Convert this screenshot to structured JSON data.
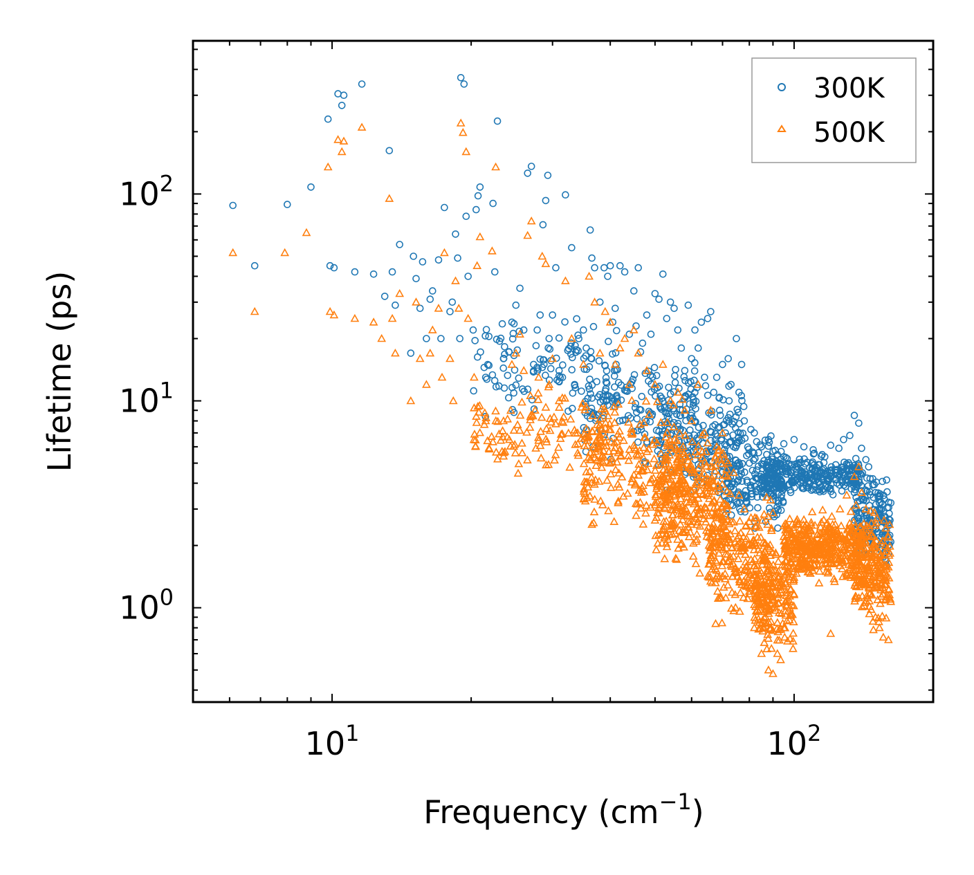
{
  "chart_data": {
    "type": "scatter",
    "title": "",
    "xlabel": "Frequency (cm",
    "xlabel_sup": "−1",
    "xlabel_close": ")",
    "ylabel": "Lifetime (ps)",
    "xscale": "log",
    "yscale": "log",
    "xlim": [
      5,
      200
    ],
    "ylim": [
      0.35,
      550
    ],
    "x_major_ticks": [
      {
        "value": 10,
        "base": "10",
        "exp": "1"
      },
      {
        "value": 100,
        "base": "10",
        "exp": "2"
      }
    ],
    "y_major_ticks": [
      {
        "value": 1,
        "base": "10",
        "exp": "0"
      },
      {
        "value": 10,
        "base": "10",
        "exp": "1"
      },
      {
        "value": 100,
        "base": "10",
        "exp": "2"
      }
    ],
    "legend_position": "top-right",
    "series": [
      {
        "name": "300K",
        "marker": "circle",
        "color": "#1f77b4",
        "points": [
          [
            6.1,
            88
          ],
          [
            6.8,
            45
          ],
          [
            8.0,
            89
          ],
          [
            9.0,
            108
          ],
          [
            9.8,
            230
          ],
          [
            9.9,
            45
          ],
          [
            10.1,
            44
          ],
          [
            10.3,
            305
          ],
          [
            10.5,
            268
          ],
          [
            10.6,
            300
          ],
          [
            11.2,
            42
          ],
          [
            11.6,
            340
          ],
          [
            12.3,
            41
          ],
          [
            13.0,
            32
          ],
          [
            13.3,
            162
          ],
          [
            13.5,
            42
          ],
          [
            13.7,
            29
          ],
          [
            14.0,
            57
          ],
          [
            14.8,
            17
          ],
          [
            15.0,
            50
          ],
          [
            15.2,
            39
          ],
          [
            15.5,
            28
          ],
          [
            15.7,
            47
          ],
          [
            16.0,
            20
          ],
          [
            16.3,
            31
          ],
          [
            16.5,
            34
          ],
          [
            17.0,
            48
          ],
          [
            17.2,
            20
          ],
          [
            17.5,
            86
          ],
          [
            18.0,
            27
          ],
          [
            18.2,
            30
          ],
          [
            18.5,
            64
          ],
          [
            18.7,
            49
          ],
          [
            18.9,
            20
          ],
          [
            19.0,
            365
          ],
          [
            19.3,
            340
          ],
          [
            19.5,
            78
          ],
          [
            19.7,
            40
          ],
          [
            20.2,
            22
          ],
          [
            20.5,
            84
          ],
          [
            20.7,
            98
          ],
          [
            20.9,
            108
          ],
          [
            21.5,
            13
          ],
          [
            22.3,
            90
          ],
          [
            22.5,
            42
          ],
          [
            22.8,
            225
          ],
          [
            23.5,
            16
          ],
          [
            24.5,
            24
          ],
          [
            25.0,
            29
          ],
          [
            25.5,
            35
          ],
          [
            26.0,
            22
          ],
          [
            26.5,
            126
          ],
          [
            27.0,
            136
          ],
          [
            27.3,
            15
          ],
          [
            27.8,
            22
          ],
          [
            28.2,
            26
          ],
          [
            28.6,
            71
          ],
          [
            29.0,
            93
          ],
          [
            29.3,
            123
          ],
          [
            29.5,
            20
          ],
          [
            30.0,
            26
          ],
          [
            30.5,
            44
          ],
          [
            31.0,
            14
          ],
          [
            32.0,
            99
          ],
          [
            33.0,
            55
          ],
          [
            33.5,
            12
          ],
          [
            34.2,
            20
          ],
          [
            35.0,
            22
          ],
          [
            35.5,
            18
          ],
          [
            36.2,
            67
          ],
          [
            36.5,
            49
          ],
          [
            37.0,
            44
          ],
          [
            38.0,
            30
          ],
          [
            38.8,
            44
          ],
          [
            39.5,
            40
          ],
          [
            40.0,
            45
          ],
          [
            40.5,
            24
          ],
          [
            41.0,
            28
          ],
          [
            42.0,
            45
          ],
          [
            43.0,
            42
          ],
          [
            44.0,
            21
          ],
          [
            45.0,
            34
          ],
          [
            45.5,
            23
          ],
          [
            46.0,
            44
          ],
          [
            47.0,
            19
          ],
          [
            48.0,
            26
          ],
          [
            49.0,
            21
          ],
          [
            50.0,
            33
          ],
          [
            51.0,
            31
          ],
          [
            52.0,
            41
          ],
          [
            53.0,
            25
          ],
          [
            54.0,
            30
          ],
          [
            55.0,
            28
          ],
          [
            56.0,
            22
          ],
          [
            57.0,
            18
          ],
          [
            58.0,
            14
          ],
          [
            59.0,
            29
          ],
          [
            60.0,
            16
          ],
          [
            61.0,
            22
          ],
          [
            62.0,
            18
          ],
          [
            63.0,
            24
          ],
          [
            64.0,
            13
          ],
          [
            65.0,
            25
          ],
          [
            66.0,
            27
          ],
          [
            67.0,
            11
          ],
          [
            68.0,
            13
          ],
          [
            69.0,
            9
          ],
          [
            70.0,
            15
          ],
          [
            71.0,
            7
          ],
          [
            72.0,
            16
          ],
          [
            73.0,
            12
          ],
          [
            74.0,
            6
          ],
          [
            75.0,
            20
          ],
          [
            76.0,
            11
          ],
          [
            77.0,
            15
          ],
          [
            78.0,
            8
          ],
          [
            80.0,
            5
          ],
          [
            82.0,
            7
          ],
          [
            85.0,
            6
          ],
          [
            88.0,
            6.5
          ],
          [
            92.0,
            5.5
          ],
          [
            95.0,
            6.2
          ],
          [
            100.0,
            6.5
          ],
          [
            105.0,
            6.0
          ],
          [
            110.0,
            5.8
          ],
          [
            115.0,
            5.5
          ],
          [
            120.0,
            6.1
          ],
          [
            125.0,
            5.9
          ],
          [
            128.0,
            6.5
          ],
          [
            132.0,
            6.8
          ],
          [
            135.0,
            8.5
          ],
          [
            138.0,
            7.8
          ],
          [
            140.0,
            5.9
          ],
          [
            143.0,
            5.2
          ],
          [
            145.0,
            4.8
          ],
          [
            148.0,
            4.2
          ],
          [
            150.0,
            3.6
          ],
          [
            153.0,
            3.0
          ],
          [
            156.0,
            2.6
          ],
          [
            160.0,
            2.2
          ]
        ],
        "bands": [
          {
            "x_start": 20,
            "x_end": 42,
            "y_low": 7,
            "y_high": 30,
            "count": 120
          },
          {
            "x_start": 35,
            "x_end": 62,
            "y_low": 4.5,
            "y_high": 20,
            "count": 170
          },
          {
            "x_start": 50,
            "x_end": 78,
            "y_low": 3,
            "y_high": 14,
            "count": 190
          },
          {
            "x_start": 70,
            "x_end": 95,
            "y_low": 2,
            "y_high": 8,
            "count": 190
          },
          {
            "x_start": 85,
            "x_end": 140,
            "y_low": 3.2,
            "y_high": 5.8,
            "count": 320
          },
          {
            "x_start": 135,
            "x_end": 162,
            "y_low": 1.3,
            "y_high": 5.5,
            "count": 170
          }
        ]
      },
      {
        "name": "500K",
        "marker": "triangle",
        "color": "#ff7f0e",
        "points": [
          [
            6.1,
            52
          ],
          [
            6.8,
            27
          ],
          [
            7.9,
            52
          ],
          [
            8.8,
            65
          ],
          [
            9.8,
            135
          ],
          [
            9.9,
            27
          ],
          [
            10.1,
            26
          ],
          [
            10.3,
            183
          ],
          [
            10.5,
            160
          ],
          [
            10.6,
            180
          ],
          [
            11.2,
            25
          ],
          [
            11.6,
            210
          ],
          [
            12.3,
            24
          ],
          [
            12.8,
            20
          ],
          [
            13.3,
            95
          ],
          [
            13.5,
            25
          ],
          [
            13.7,
            17
          ],
          [
            14.0,
            33
          ],
          [
            14.8,
            10
          ],
          [
            15.2,
            30
          ],
          [
            15.5,
            16
          ],
          [
            16.0,
            12
          ],
          [
            16.3,
            17
          ],
          [
            16.5,
            22
          ],
          [
            17.0,
            28
          ],
          [
            17.3,
            13
          ],
          [
            17.5,
            52
          ],
          [
            18.0,
            16
          ],
          [
            18.3,
            10
          ],
          [
            18.5,
            38
          ],
          [
            18.8,
            28
          ],
          [
            19.0,
            220
          ],
          [
            19.2,
            198
          ],
          [
            19.5,
            160
          ],
          [
            19.7,
            25
          ],
          [
            20.3,
            13
          ],
          [
            20.6,
            45
          ],
          [
            20.9,
            62
          ],
          [
            21.5,
            8
          ],
          [
            22.2,
            53
          ],
          [
            22.6,
            135
          ],
          [
            23.5,
            8
          ],
          [
            24.5,
            15
          ],
          [
            25.0,
            17
          ],
          [
            25.5,
            21
          ],
          [
            26.0,
            14
          ],
          [
            26.5,
            63
          ],
          [
            27.0,
            74
          ],
          [
            27.5,
            9
          ],
          [
            28.0,
            13
          ],
          [
            28.5,
            50
          ],
          [
            29.0,
            46
          ],
          [
            29.5,
            12
          ],
          [
            30.0,
            16
          ],
          [
            31.0,
            10
          ],
          [
            32.0,
            38
          ],
          [
            33.0,
            20
          ],
          [
            34.0,
            7
          ],
          [
            35.0,
            15
          ],
          [
            36.0,
            40
          ],
          [
            37.0,
            30
          ],
          [
            38.0,
            17
          ],
          [
            39.0,
            27
          ],
          [
            40.0,
            24
          ],
          [
            41.0,
            15
          ],
          [
            42.0,
            18
          ],
          [
            43.0,
            20
          ],
          [
            44.0,
            12
          ],
          [
            45.0,
            22
          ],
          [
            46.0,
            17
          ],
          [
            48.0,
            14
          ],
          [
            50.0,
            12
          ],
          [
            52.0,
            15
          ],
          [
            54.0,
            10
          ],
          [
            56.0,
            11
          ],
          [
            58.0,
            9
          ],
          [
            60.0,
            8
          ],
          [
            62.0,
            12
          ],
          [
            64.0,
            7
          ],
          [
            66.0,
            9
          ],
          [
            68.0,
            6
          ],
          [
            70.0,
            7
          ],
          [
            72.0,
            5
          ],
          [
            74.0,
            4.5
          ],
          [
            76.0,
            3.5
          ],
          [
            78.0,
            3
          ],
          [
            80.0,
            1.2
          ],
          [
            82.0,
            0.8
          ],
          [
            85.0,
            0.6
          ],
          [
            88.0,
            0.5
          ],
          [
            90.0,
            0.48
          ],
          [
            92.0,
            0.6
          ],
          [
            95.0,
            0.8
          ],
          [
            100.0,
            1.4
          ],
          [
            105.0,
            1.6
          ],
          [
            110.0,
            1.8
          ],
          [
            115.0,
            1.7
          ],
          [
            120.0,
            0.75
          ],
          [
            125.0,
            2.2
          ],
          [
            130.0,
            3.5
          ],
          [
            135.0,
            4.3
          ],
          [
            138.0,
            4.8
          ],
          [
            140.0,
            3.6
          ],
          [
            143.0,
            3.0
          ],
          [
            146.0,
            1.5
          ],
          [
            150.0,
            0.9
          ],
          [
            153.0,
            0.8
          ],
          [
            156.0,
            0.72
          ],
          [
            160.0,
            0.7
          ],
          [
            161.0,
            1.1
          ]
        ],
        "bands": [
          {
            "x_start": 20,
            "x_end": 42,
            "y_low": 3.5,
            "y_high": 14,
            "count": 140
          },
          {
            "x_start": 35,
            "x_end": 58,
            "y_low": 2,
            "y_high": 12,
            "count": 220
          },
          {
            "x_start": 50,
            "x_end": 72,
            "y_low": 1.3,
            "y_high": 9,
            "count": 320
          },
          {
            "x_start": 65,
            "x_end": 90,
            "y_low": 0.7,
            "y_high": 4,
            "count": 250
          },
          {
            "x_start": 82,
            "x_end": 100,
            "y_low": 0.5,
            "y_high": 2.5,
            "count": 200
          },
          {
            "x_start": 95,
            "x_end": 140,
            "y_low": 1.2,
            "y_high": 3.2,
            "count": 420
          },
          {
            "x_start": 135,
            "x_end": 162,
            "y_low": 0.7,
            "y_high": 3.5,
            "count": 230
          }
        ]
      }
    ]
  }
}
